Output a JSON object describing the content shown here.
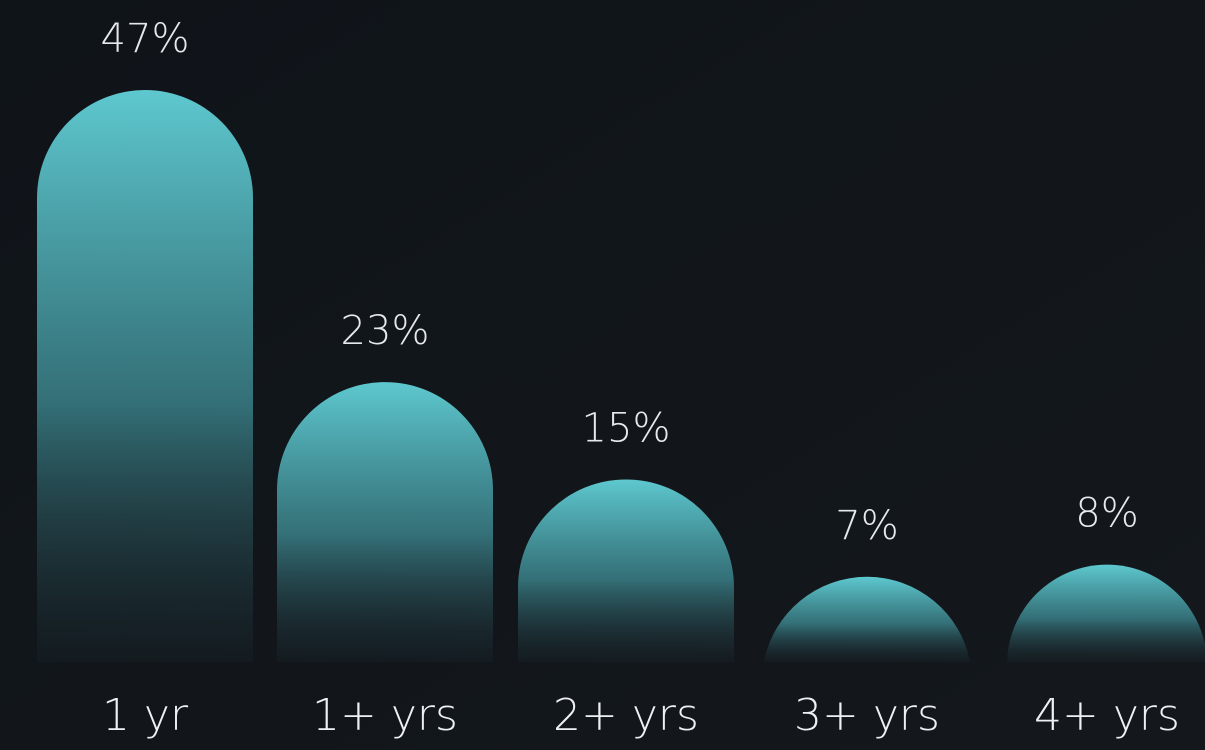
{
  "chart_data": {
    "type": "bar",
    "categories": [
      "1 yr",
      "1+ yrs",
      "2+ yrs",
      "3+ yrs",
      "4+ yrs"
    ],
    "values": [
      47,
      23,
      15,
      7,
      8
    ],
    "value_labels": [
      "47%",
      "23%",
      "15%",
      "7%",
      "8%"
    ],
    "unit": "%",
    "ylim": [
      0,
      47
    ],
    "grid": false,
    "colors": {
      "background": "#101419",
      "bar_top": "#5ec8cf",
      "bar_bottom": "#1a2a30",
      "label_text": "#e6e9ec"
    }
  }
}
